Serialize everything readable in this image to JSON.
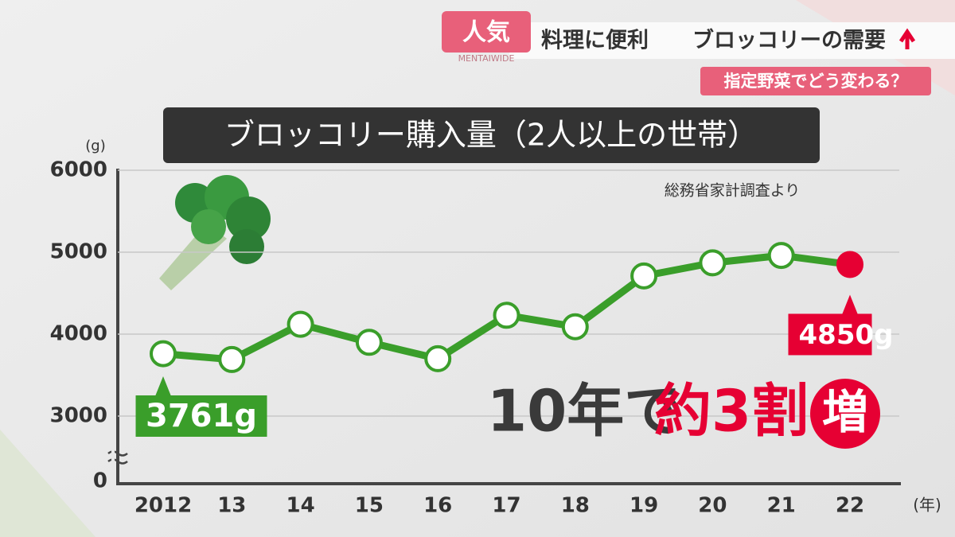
{
  "banner": {
    "tag": "人気",
    "brand": "MENTAIWIDE",
    "headline_a": "料理に便利",
    "headline_b": "ブロッコリーの需要",
    "sub": "指定野菜でどう変わる？"
  },
  "chart_data": {
    "type": "line",
    "title": "ブロッコリー購入量（2人以上の世帯）",
    "source": "総務省家計調査より",
    "y_unit": "(g)",
    "x_unit": "(年)",
    "categories": [
      "2012",
      "13",
      "14",
      "15",
      "16",
      "17",
      "18",
      "19",
      "20",
      "21",
      "22"
    ],
    "values": [
      3761,
      3690,
      4120,
      3900,
      3700,
      4230,
      4090,
      4710,
      4870,
      4960,
      4850
    ],
    "value_labels": [
      "3761g",
      null,
      null,
      null,
      null,
      null,
      null,
      null,
      null,
      null,
      "4850g"
    ],
    "color": "#3a9e2a",
    "highlight_color": "#e60033",
    "ylim": [
      0,
      6000
    ],
    "axis_break": [
      0,
      3000
    ],
    "yticks": [
      0,
      3000,
      4000,
      5000,
      6000
    ],
    "grid": true,
    "headline": {
      "part1": "10年で",
      "part2": "約3割",
      "part3": "増"
    }
  }
}
